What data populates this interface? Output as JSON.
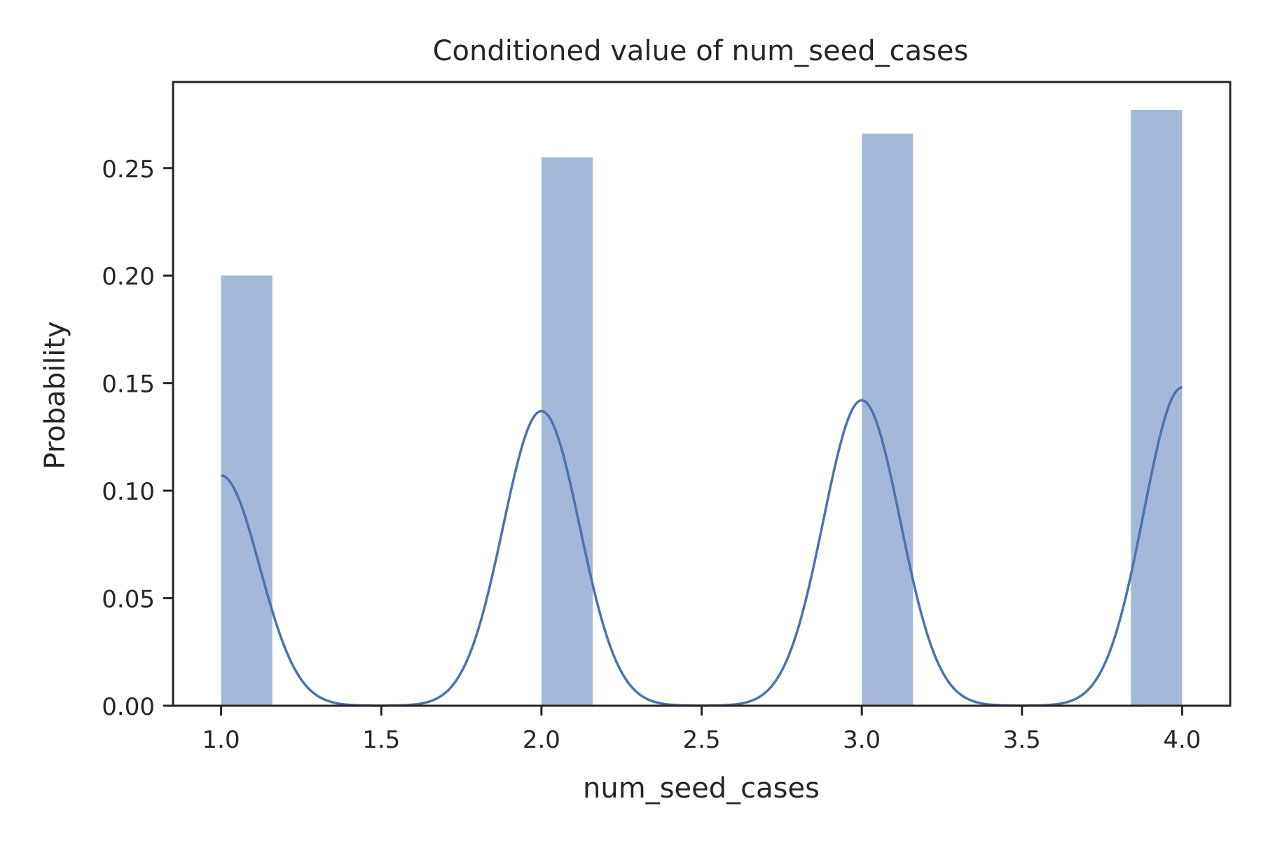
{
  "chart_data": {
    "type": "bar",
    "title": "Conditioned value of num_seed_cases",
    "xlabel": "num_seed_cases",
    "ylabel": "Probability",
    "xlim": [
      0.85,
      4.15
    ],
    "ylim": [
      0,
      0.29
    ],
    "xticks": [
      1.0,
      1.5,
      2.0,
      2.5,
      3.0,
      3.5,
      4.0
    ],
    "xtick_labels": [
      "1.0",
      "1.5",
      "2.0",
      "2.5",
      "3.0",
      "3.5",
      "4.0"
    ],
    "yticks": [
      0.0,
      0.05,
      0.1,
      0.15,
      0.2,
      0.25
    ],
    "ytick_labels": [
      "0.00",
      "0.05",
      "0.10",
      "0.15",
      "0.20",
      "0.25"
    ],
    "bars": [
      {
        "x0": 1.0,
        "x1": 1.16,
        "value": 0.2
      },
      {
        "x0": 2.0,
        "x1": 2.16,
        "value": 0.255
      },
      {
        "x0": 3.0,
        "x1": 3.16,
        "value": 0.266
      },
      {
        "x0": 3.84,
        "x1": 4.0,
        "value": 0.277
      }
    ],
    "kde": {
      "name": "",
      "peaks": [
        {
          "x": 1.0,
          "y": 0.107
        },
        {
          "x": 2.0,
          "y": 0.137
        },
        {
          "x": 3.0,
          "y": 0.142
        },
        {
          "x": 4.0,
          "y": 0.148
        }
      ],
      "bandwidth": 0.12
    },
    "grid": false,
    "legend": "none",
    "colors": {
      "bar": "#a5b8d8",
      "line": "#4c72b0",
      "axis": "#262626"
    }
  }
}
